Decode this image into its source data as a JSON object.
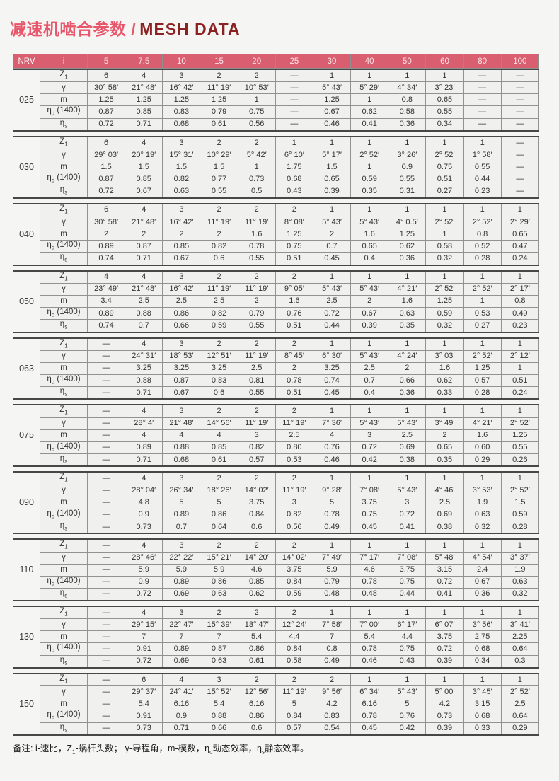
{
  "title": {
    "cn": "减速机啮合参数 /",
    "en": "MESH DATA"
  },
  "colors": {
    "accent_header": "#d95f70",
    "title_cn": "#e7566a",
    "title_en": "#8c2124",
    "border_dark": "#474747",
    "border_light": "#929292",
    "cell_bg": "#f0f0ee",
    "page_bg": "#f5f5f3"
  },
  "header": {
    "nrv": "NRV",
    "i": "i",
    "ratios": [
      "5",
      "7.5",
      "10",
      "15",
      "20",
      "25",
      "30",
      "40",
      "50",
      "60",
      "80",
      "100"
    ]
  },
  "row_labels": [
    {
      "key": "z1",
      "parts": [
        {
          "t": "Z"
        },
        {
          "t": "1",
          "sub": true
        }
      ]
    },
    {
      "key": "gamma",
      "parts": [
        {
          "t": "γ"
        }
      ]
    },
    {
      "key": "m",
      "parts": [
        {
          "t": "m"
        }
      ]
    },
    {
      "key": "eta_d",
      "parts": [
        {
          "t": "η"
        },
        {
          "t": "d",
          "sub": true
        },
        {
          "t": " (1400)"
        }
      ]
    },
    {
      "key": "eta_s",
      "parts": [
        {
          "t": "η"
        },
        {
          "t": "s",
          "sub": true
        }
      ]
    }
  ],
  "sections": [
    {
      "nrv": "025",
      "rows": {
        "z1": [
          "6",
          "4",
          "3",
          "2",
          "2",
          "—",
          "1",
          "1",
          "1",
          "1",
          "—",
          "—"
        ],
        "gamma": [
          "30° 58′",
          "21° 48′",
          "16° 42′",
          "11° 19′",
          "10° 53′",
          "—",
          "5° 43′",
          "5° 29′",
          "4° 34′",
          "3° 23′",
          "—",
          "—"
        ],
        "m": [
          "1.25",
          "1.25",
          "1.25",
          "1.25",
          "1",
          "—",
          "1.25",
          "1",
          "0.8",
          "0.65",
          "—",
          "—"
        ],
        "eta_d": [
          "0.87",
          "0.85",
          "0.83",
          "0.79",
          "0.75",
          "—",
          "0.67",
          "0.62",
          "0.58",
          "0.55",
          "—",
          "—"
        ],
        "eta_s": [
          "0.72",
          "0.71",
          "0.68",
          "0.61",
          "0.56",
          "—",
          "0.46",
          "0.41",
          "0.36",
          "0.34",
          "—",
          "—"
        ]
      }
    },
    {
      "nrv": "030",
      "rows": {
        "z1": [
          "6",
          "4",
          "3",
          "2",
          "2",
          "1",
          "1",
          "1",
          "1",
          "1",
          "1",
          "—"
        ],
        "gamma": [
          "29° 03′",
          "20° 19′",
          "15° 31′",
          "10° 29′",
          "5° 42′",
          "6° 10′",
          "5° 17′",
          "2° 52′",
          "3° 26′",
          "2° 52′",
          "1° 58′",
          "—"
        ],
        "m": [
          "1.5",
          "1.5",
          "1.5",
          "1.5",
          "1",
          "1.75",
          "1.5",
          "1",
          "0.9",
          "0.75",
          "0.55",
          "—"
        ],
        "eta_d": [
          "0.87",
          "0.85",
          "0.82",
          "0.77",
          "0.73",
          "0.68",
          "0.65",
          "0.59",
          "0.55",
          "0.51",
          "0.44",
          "—"
        ],
        "eta_s": [
          "0.72",
          "0.67",
          "0.63",
          "0.55",
          "0.5",
          "0.43",
          "0.39",
          "0.35",
          "0.31",
          "0.27",
          "0.23",
          "—"
        ]
      }
    },
    {
      "nrv": "040",
      "rows": {
        "z1": [
          "6",
          "4",
          "3",
          "2",
          "2",
          "2",
          "1",
          "1",
          "1",
          "1",
          "1",
          "1"
        ],
        "gamma": [
          "30° 58′",
          "21° 48′",
          "16° 42′",
          "11° 19′",
          "11° 19′",
          "8° 08′",
          "5° 43′",
          "5° 43′",
          "4° 0.5′",
          "2° 52′",
          "2° 52′",
          "2° 29′"
        ],
        "m": [
          "2",
          "2",
          "2",
          "2",
          "1.6",
          "1.25",
          "2",
          "1.6",
          "1.25",
          "1",
          "0.8",
          "0.65"
        ],
        "eta_d": [
          "0.89",
          "0.87",
          "0.85",
          "0.82",
          "0.78",
          "0.75",
          "0.7",
          "0.65",
          "0.62",
          "0.58",
          "0.52",
          "0.47"
        ],
        "eta_s": [
          "0.74",
          "0.71",
          "0.67",
          "0.6",
          "0.55",
          "0.51",
          "0.45",
          "0.4",
          "0.36",
          "0.32",
          "0.28",
          "0.24"
        ]
      }
    },
    {
      "nrv": "050",
      "rows": {
        "z1": [
          "4",
          "4",
          "3",
          "2",
          "2",
          "2",
          "1",
          "1",
          "1",
          "1",
          "1",
          "1"
        ],
        "gamma": [
          "23° 49′",
          "21° 48′",
          "16° 42′",
          "11° 19′",
          "11° 19′",
          "9° 05′",
          "5° 43′",
          "5° 43′",
          "4° 21′",
          "2° 52′",
          "2° 52′",
          "2° 17′"
        ],
        "m": [
          "3.4",
          "2.5",
          "2.5",
          "2.5",
          "2",
          "1.6",
          "2.5",
          "2",
          "1.6",
          "1.25",
          "1",
          "0.8"
        ],
        "eta_d": [
          "0.89",
          "0.88",
          "0.86",
          "0.82",
          "0.79",
          "0.76",
          "0.72",
          "0.67",
          "0.63",
          "0.59",
          "0.53",
          "0.49"
        ],
        "eta_s": [
          "0.74",
          "0.7",
          "0.66",
          "0.59",
          "0.55",
          "0.51",
          "0.44",
          "0.39",
          "0.35",
          "0.32",
          "0.27",
          "0.23"
        ]
      }
    },
    {
      "nrv": "063",
      "rows": {
        "z1": [
          "—",
          "4",
          "3",
          "2",
          "2",
          "2",
          "1",
          "1",
          "1",
          "1",
          "1",
          "1"
        ],
        "gamma": [
          "—",
          "24° 31′",
          "18° 53′",
          "12° 51′",
          "11° 19′",
          "8° 45′",
          "6° 30′",
          "5° 43′",
          "4° 24′",
          "3° 03′",
          "2° 52′",
          "2° 12′"
        ],
        "m": [
          "—",
          "3.25",
          "3.25",
          "3.25",
          "2.5",
          "2",
          "3.25",
          "2.5",
          "2",
          "1.6",
          "1.25",
          "1"
        ],
        "eta_d": [
          "—",
          "0.88",
          "0.87",
          "0.83",
          "0.81",
          "0.78",
          "0.74",
          "0.7",
          "0.66",
          "0.62",
          "0.57",
          "0.51"
        ],
        "eta_s": [
          "—",
          "0.71",
          "0.67",
          "0.6",
          "0.55",
          "0.51",
          "0.45",
          "0.4",
          "0.36",
          "0.33",
          "0.28",
          "0.24"
        ]
      }
    },
    {
      "nrv": "075",
      "rows": {
        "z1": [
          "—",
          "4",
          "3",
          "2",
          "2",
          "2",
          "1",
          "1",
          "1",
          "1",
          "1",
          "1"
        ],
        "gamma": [
          "—",
          "28° 4′",
          "21° 48′",
          "14° 56′",
          "11° 19′",
          "11° 19′",
          "7° 36′",
          "5° 43′",
          "5° 43′",
          "3° 49′",
          "4° 21′",
          "2° 52′"
        ],
        "m": [
          "—",
          "4",
          "4",
          "4",
          "3",
          "2.5",
          "4",
          "3",
          "2.5",
          "2",
          "1.6",
          "1.25"
        ],
        "eta_d": [
          "—",
          "0.89",
          "0.88",
          "0.85",
          "0.82",
          "0.80",
          "0.76",
          "0.72",
          "0.69",
          "0.65",
          "0.60",
          "0.55"
        ],
        "eta_s": [
          "—",
          "0.71",
          "0.68",
          "0.61",
          "0.57",
          "0.53",
          "0.46",
          "0.42",
          "0.38",
          "0.35",
          "0.29",
          "0.26"
        ]
      }
    },
    {
      "nrv": "090",
      "rows": {
        "z1": [
          "—",
          "4",
          "3",
          "2",
          "2",
          "2",
          "1",
          "1",
          "1",
          "1",
          "1",
          "1"
        ],
        "gamma": [
          "—",
          "28° 04′",
          "26° 34′",
          "18° 26′",
          "14° 02′",
          "11° 19′",
          "9° 28′",
          "7° 08′",
          "5° 43′",
          "4° 46′",
          "3° 53′",
          "2° 52′"
        ],
        "m": [
          "—",
          "4.8",
          "5",
          "5",
          "3.75",
          "3",
          "5",
          "3.75",
          "3",
          "2.5",
          "1.9",
          "1.5"
        ],
        "eta_d": [
          "—",
          "0.9",
          "0.89",
          "0.86",
          "0.84",
          "0.82",
          "0.78",
          "0.75",
          "0.72",
          "0.69",
          "0.63",
          "0.59"
        ],
        "eta_s": [
          "—",
          "0.73",
          "0.7",
          "0.64",
          "0.6",
          "0.56",
          "0.49",
          "0.45",
          "0.41",
          "0.38",
          "0.32",
          "0.28"
        ]
      }
    },
    {
      "nrv": "110",
      "rows": {
        "z1": [
          "—",
          "4",
          "3",
          "2",
          "2",
          "2",
          "1",
          "1",
          "1",
          "1",
          "1",
          "1"
        ],
        "gamma": [
          "—",
          "28° 46′",
          "22° 22′",
          "15° 21′",
          "14° 20′",
          "14° 02′",
          "7° 49′",
          "7° 17′",
          "7° 08′",
          "5° 48′",
          "4° 54′",
          "3° 37′"
        ],
        "m": [
          "—",
          "5.9",
          "5.9",
          "5.9",
          "4.6",
          "3.75",
          "5.9",
          "4.6",
          "3.75",
          "3.15",
          "2.4",
          "1.9"
        ],
        "eta_d": [
          "—",
          "0.9",
          "0.89",
          "0.86",
          "0.85",
          "0.84",
          "0.79",
          "0.78",
          "0.75",
          "0.72",
          "0.67",
          "0.63"
        ],
        "eta_s": [
          "—",
          "0.72",
          "0.69",
          "0.63",
          "0.62",
          "0.59",
          "0.48",
          "0.48",
          "0.44",
          "0.41",
          "0.36",
          "0.32"
        ]
      }
    },
    {
      "nrv": "130",
      "rows": {
        "z1": [
          "—",
          "4",
          "3",
          "2",
          "2",
          "2",
          "1",
          "1",
          "1",
          "1",
          "1",
          "1"
        ],
        "gamma": [
          "—",
          "29° 15′",
          "22° 47′",
          "15° 39′",
          "13° 47′",
          "12° 24′",
          "7° 58′",
          "7° 00′",
          "6° 17′",
          "6° 07′",
          "3° 56′",
          "3° 41′"
        ],
        "m": [
          "—",
          "7",
          "7",
          "7",
          "5.4",
          "4.4",
          "7",
          "5.4",
          "4.4",
          "3.75",
          "2.75",
          "2.25"
        ],
        "eta_d": [
          "—",
          "0.91",
          "0.89",
          "0.87",
          "0.86",
          "0.84",
          "0.8",
          "0.78",
          "0.75",
          "0.72",
          "0.68",
          "0.64"
        ],
        "eta_s": [
          "—",
          "0.72",
          "0.69",
          "0.63",
          "0.61",
          "0.58",
          "0.49",
          "0.46",
          "0.43",
          "0.39",
          "0.34",
          "0.3"
        ]
      }
    },
    {
      "nrv": "150",
      "rows": {
        "z1": [
          "—",
          "6",
          "4",
          "3",
          "2",
          "2",
          "2",
          "1",
          "1",
          "1",
          "1",
          "1"
        ],
        "gamma": [
          "—",
          "29° 37′",
          "24° 41′",
          "15° 52′",
          "12° 56′",
          "11° 19′",
          "9° 56′",
          "6° 34′",
          "5° 43′",
          "5° 00′",
          "3° 45′",
          "2° 52′"
        ],
        "m": [
          "—",
          "5.4",
          "6.16",
          "5.4",
          "6.16",
          "5",
          "4.2",
          "6.16",
          "5",
          "4.2",
          "3.15",
          "2.5"
        ],
        "eta_d": [
          "—",
          "0.91",
          "0.9",
          "0.88",
          "0.86",
          "0.84",
          "0.83",
          "0.78",
          "0.76",
          "0.73",
          "0.68",
          "0.64"
        ],
        "eta_s": [
          "—",
          "0.73",
          "0.71",
          "0.66",
          "0.6",
          "0.57",
          "0.54",
          "0.45",
          "0.42",
          "0.39",
          "0.33",
          "0.29"
        ]
      }
    }
  ],
  "footnote_parts": [
    {
      "t": "备注: i-速比，Z"
    },
    {
      "t": "1",
      "sub": true
    },
    {
      "t": "-蜗杆头数； γ-导程角，m-模数，η"
    },
    {
      "t": "d",
      "sub": true
    },
    {
      "t": "动态效率，η"
    },
    {
      "t": "s",
      "sub": true
    },
    {
      "t": "静态效率。"
    }
  ]
}
